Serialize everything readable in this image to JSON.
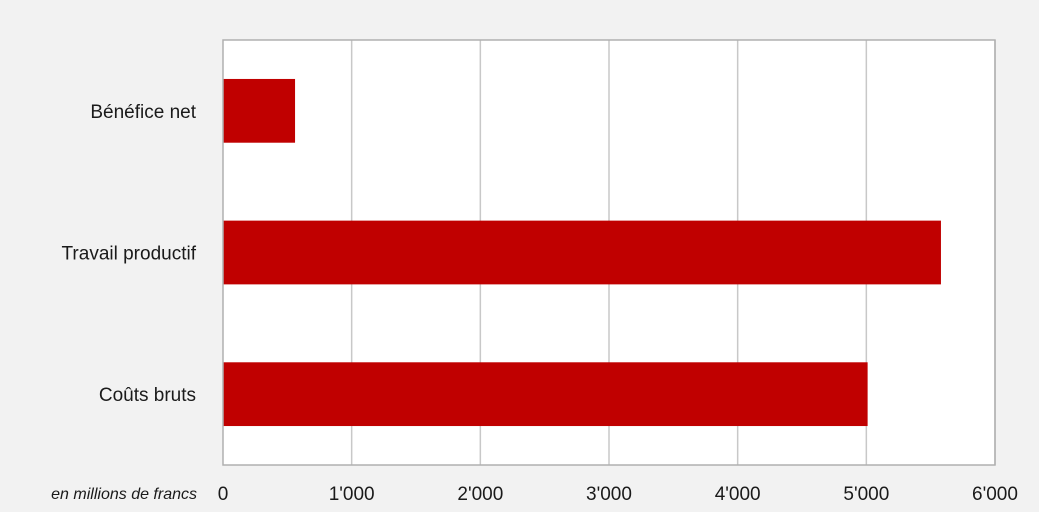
{
  "chart_data": {
    "type": "bar",
    "orientation": "horizontal",
    "categories": [
      "Bénéfice net",
      "Travail productif",
      "Coûts bruts"
    ],
    "values": [
      560,
      5580,
      5010
    ],
    "xlim": [
      0,
      6000
    ],
    "xticks": [
      0,
      1000,
      2000,
      3000,
      4000,
      5000,
      6000
    ],
    "xtick_labels": [
      "0",
      "1'000",
      "2'000",
      "3'000",
      "4'000",
      "5'000",
      "6'000"
    ],
    "unit_label": "en millions de francs",
    "grid": true,
    "legend": "none",
    "colors": {
      "bar": "#c00000",
      "grid": "#c8c8c8",
      "plot_bg": "#ffffff",
      "page_bg": "#f2f2f2",
      "frame": "#b0b0b0"
    }
  }
}
